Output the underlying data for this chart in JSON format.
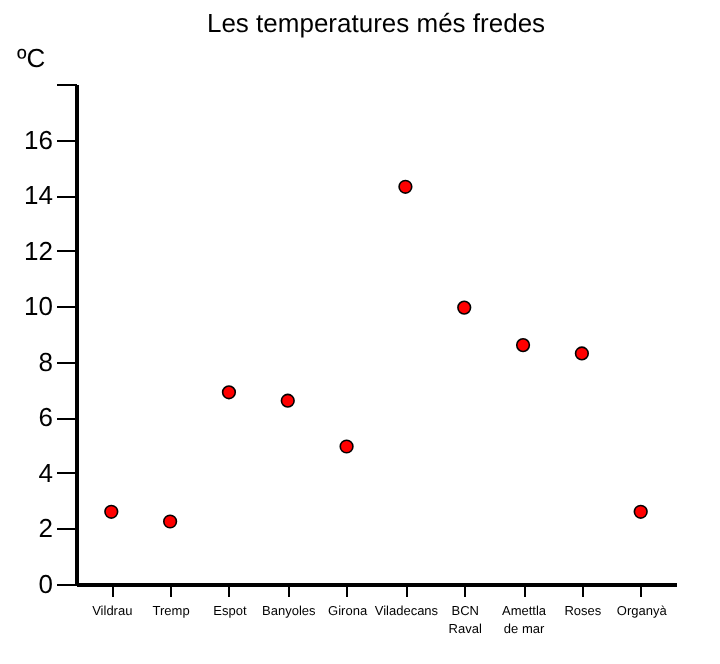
{
  "chart_data": {
    "type": "scatter",
    "title": "Les temperatures més fredes",
    "ylabel": "ºC",
    "categories": [
      "Vildrau",
      "Tremp",
      "Espot",
      "Banyoles",
      "Girona",
      "Viladecans",
      "BCN\nRaval",
      "Amettla\nde mar",
      "Roses",
      "Organyà"
    ],
    "series": [
      {
        "color": "#ff0000",
        "values": [
          2.6,
          2.25,
          6.9,
          6.6,
          4.95,
          14.3,
          9.95,
          8.6,
          8.3,
          2.6
        ]
      }
    ],
    "ylim": [
      0,
      18
    ],
    "yticks": [
      0,
      2,
      4,
      6,
      8,
      10,
      12,
      14,
      16,
      {
        "value": 18,
        "label": null
      }
    ],
    "marker": "circle",
    "grid": false,
    "legend": false
  }
}
